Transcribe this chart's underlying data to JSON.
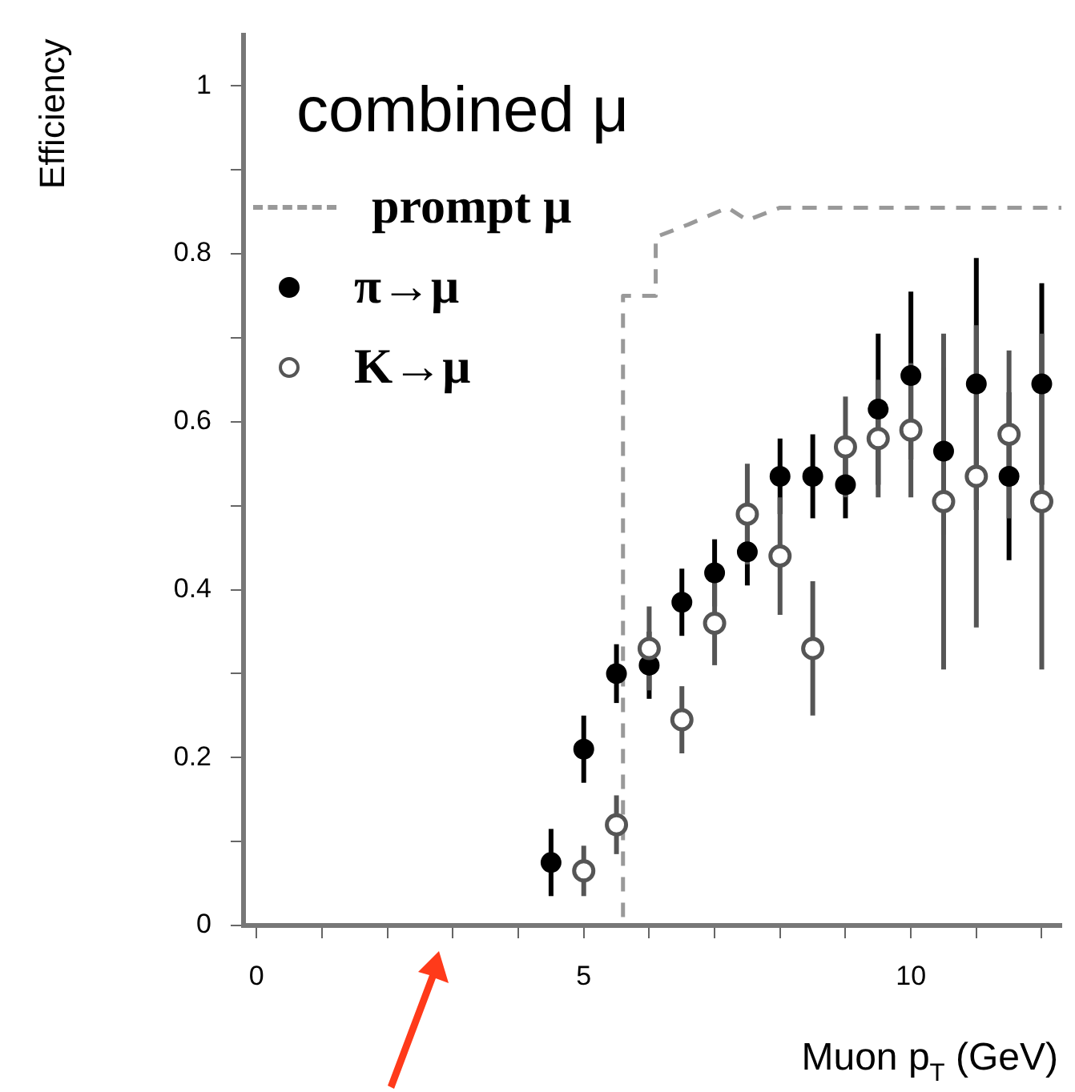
{
  "chart_data": {
    "type": "scatter",
    "xlabel": "Muon p$_{T}$ (GeV)",
    "ylabel": "Efficiency",
    "annotations": [
      "combined μ"
    ],
    "xlim": [
      -0.2,
      12.3
    ],
    "ylim": [
      0,
      1.06
    ],
    "xticks": [
      0,
      {
        "value": 1,
        "label": null
      },
      {
        "value": 2,
        "label": null
      },
      {
        "value": 3,
        "label": null
      },
      {
        "value": 4,
        "label": null
      },
      5,
      {
        "value": 6,
        "label": null
      },
      {
        "value": 7,
        "label": null
      },
      {
        "value": 8,
        "label": null
      },
      {
        "value": 9,
        "label": null
      },
      10,
      {
        "value": 11,
        "label": null
      },
      {
        "value": 12,
        "label": null
      }
    ],
    "yticks": [
      0,
      {
        "value": 0.1,
        "label": null
      },
      0.2,
      {
        "value": 0.3,
        "label": null
      },
      0.4,
      {
        "value": 0.5,
        "label": null
      },
      0.6,
      {
        "value": 0.7,
        "label": null
      },
      0.8,
      {
        "value": 0.9,
        "label": null
      },
      1
    ],
    "grid": false,
    "legend": "top left",
    "series": [
      {
        "name": "prompt μ",
        "type": "line",
        "line_style": "dashed",
        "marker": "none",
        "color": "#999999",
        "x": [
          5.6,
          5.6,
          6.1,
          6.1,
          6.6,
          7.2,
          7.5,
          8,
          12.3
        ],
        "values": [
          0.01,
          0.75,
          0.75,
          0.82,
          0.835,
          0.855,
          0.84,
          0.855,
          0.855
        ]
      },
      {
        "name": "π→μ",
        "type": "scatter",
        "marker": "circle",
        "color": "#000000",
        "x": [
          4.5,
          5,
          5.5,
          6,
          6.5,
          7,
          7.5,
          8,
          8.5,
          9,
          9.5,
          10,
          10.5,
          11,
          11.5,
          12
        ],
        "values": [
          0.075,
          0.21,
          0.3,
          0.31,
          0.385,
          0.42,
          0.445,
          0.535,
          0.535,
          0.525,
          0.615,
          0.655,
          0.565,
          0.645,
          0.535,
          0.645
        ],
        "errors": [
          0.04,
          0.04,
          0.035,
          0.04,
          0.04,
          0.04,
          0.04,
          0.045,
          0.05,
          0.04,
          0.09,
          0.1,
          0.1,
          0.15,
          0.1,
          0.12
        ]
      },
      {
        "name": "K→μ",
        "type": "scatter",
        "marker": "circle",
        "color": "#555555",
        "x": [
          5,
          5.5,
          6,
          6.5,
          7,
          7.5,
          8,
          8.5,
          9,
          9.5,
          10,
          10.5,
          11,
          11.5,
          12
        ],
        "values": [
          0.065,
          0.12,
          0.33,
          0.245,
          0.36,
          0.49,
          0.44,
          0.33,
          0.57,
          0.58,
          0.59,
          0.505,
          0.535,
          0.585,
          0.505
        ],
        "errors": [
          0.03,
          0.035,
          0.05,
          0.04,
          0.05,
          0.06,
          0.07,
          0.08,
          0.06,
          0.07,
          0.08,
          0.2,
          0.18,
          0.1,
          0.2
        ]
      }
    ]
  }
}
